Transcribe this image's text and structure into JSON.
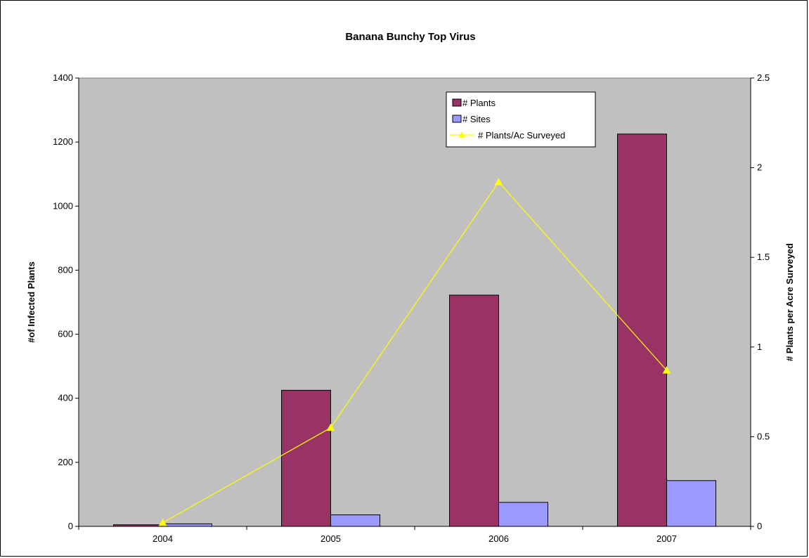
{
  "chart_data": {
    "type": "bar",
    "title": "Banana Bunchy Top Virus",
    "categories": [
      "2004",
      "2005",
      "2006",
      "2007"
    ],
    "ylabel": "#of Infected Plants",
    "y2label": "# Plants per Acre Surveyed",
    "ylim": [
      0,
      1400
    ],
    "y2lim": [
      0,
      2.5
    ],
    "yticks": [
      "0",
      "200",
      "400",
      "600",
      "800",
      "1000",
      "1200",
      "1400"
    ],
    "y2ticks": [
      "0",
      "0.5",
      "1",
      "1.5",
      "2",
      "2.5"
    ],
    "grid": false,
    "legend_position": "top-right",
    "plot_background": "#c0c0c0",
    "series": [
      {
        "name": "# Plants",
        "type": "bar",
        "axis": "left",
        "color": "#993366",
        "values": [
          5,
          425,
          722,
          1225
        ]
      },
      {
        "name": "# Sites",
        "type": "bar",
        "axis": "left",
        "color": "#9999ff",
        "values": [
          8,
          36,
          75,
          143
        ]
      },
      {
        "name": "# Plants/Ac Surveyed",
        "type": "line",
        "axis": "right",
        "color": "#ffff00",
        "marker": "triangle",
        "values": [
          0.02,
          0.55,
          1.92,
          0.87
        ]
      }
    ]
  }
}
